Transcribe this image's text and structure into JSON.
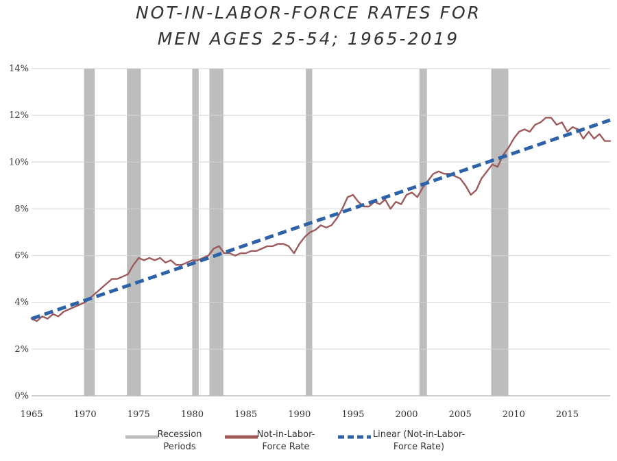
{
  "chart_data": {
    "type": "line",
    "title_line1": "NOT-IN-LABOR-FORCE RATES FOR",
    "title_line2": "MEN AGES 25-54; 1965-2019",
    "xlabel": "",
    "ylabel": "",
    "xlim": [
      1965,
      2019
    ],
    "ylim": [
      0,
      14
    ],
    "y_ticks": [
      "0%",
      "2%",
      "4%",
      "6%",
      "8%",
      "10%",
      "12%",
      "14%"
    ],
    "x_ticks": [
      "1965",
      "1970",
      "1975",
      "1980",
      "1985",
      "1990",
      "1995",
      "2000",
      "2005",
      "2010",
      "2015"
    ],
    "grid": true,
    "legend_position": "bottom",
    "recession_periods": [
      [
        1969.9,
        1970.9
      ],
      [
        1973.9,
        1975.2
      ],
      [
        1980.0,
        1980.6
      ],
      [
        1981.6,
        1982.9
      ],
      [
        1990.6,
        1991.2
      ],
      [
        2001.2,
        2001.9
      ],
      [
        2007.9,
        2009.5
      ]
    ],
    "series": [
      {
        "name": "Not-in-Labor-Force Rate",
        "color": "#9e5a5a",
        "x": [
          1965.0,
          1965.5,
          1966.0,
          1966.5,
          1967.0,
          1967.5,
          1968.0,
          1968.5,
          1969.0,
          1969.5,
          1970.0,
          1970.5,
          1971.0,
          1971.5,
          1972.0,
          1972.5,
          1973.0,
          1973.5,
          1974.0,
          1974.5,
          1975.0,
          1975.5,
          1976.0,
          1976.5,
          1977.0,
          1977.5,
          1978.0,
          1978.5,
          1979.0,
          1979.5,
          1980.0,
          1980.5,
          1981.0,
          1981.5,
          1982.0,
          1982.5,
          1983.0,
          1983.5,
          1984.0,
          1984.5,
          1985.0,
          1985.5,
          1986.0,
          1986.5,
          1987.0,
          1987.5,
          1988.0,
          1988.5,
          1989.0,
          1989.5,
          1990.0,
          1990.5,
          1991.0,
          1991.5,
          1992.0,
          1992.5,
          1993.0,
          1993.5,
          1994.0,
          1994.5,
          1995.0,
          1995.5,
          1996.0,
          1996.5,
          1997.0,
          1997.5,
          1998.0,
          1998.5,
          1999.0,
          1999.5,
          2000.0,
          2000.5,
          2001.0,
          2001.5,
          2002.0,
          2002.5,
          2003.0,
          2003.5,
          2004.0,
          2004.5,
          2005.0,
          2005.5,
          2006.0,
          2006.5,
          2007.0,
          2007.5,
          2008.0,
          2008.5,
          2009.0,
          2009.5,
          2010.0,
          2010.5,
          2011.0,
          2011.5,
          2012.0,
          2012.5,
          2013.0,
          2013.5,
          2014.0,
          2014.5,
          2015.0,
          2015.5,
          2016.0,
          2016.5,
          2017.0,
          2017.5,
          2018.0,
          2018.5,
          2019.0
        ],
        "values": [
          3.3,
          3.2,
          3.4,
          3.3,
          3.5,
          3.4,
          3.6,
          3.7,
          3.8,
          3.9,
          4.0,
          4.2,
          4.4,
          4.6,
          4.8,
          5.0,
          5.0,
          5.1,
          5.2,
          5.6,
          5.9,
          5.8,
          5.9,
          5.8,
          5.9,
          5.7,
          5.8,
          5.6,
          5.6,
          5.7,
          5.8,
          5.8,
          5.9,
          6.0,
          6.3,
          6.4,
          6.1,
          6.1,
          6.0,
          6.1,
          6.1,
          6.2,
          6.2,
          6.3,
          6.4,
          6.4,
          6.5,
          6.5,
          6.4,
          6.1,
          6.5,
          6.8,
          7.0,
          7.1,
          7.3,
          7.2,
          7.3,
          7.6,
          8.0,
          8.5,
          8.6,
          8.3,
          8.1,
          8.1,
          8.3,
          8.2,
          8.4,
          8.0,
          8.3,
          8.2,
          8.6,
          8.7,
          8.5,
          8.9,
          9.2,
          9.5,
          9.6,
          9.5,
          9.5,
          9.4,
          9.3,
          9.0,
          8.6,
          8.8,
          9.3,
          9.6,
          9.9,
          9.8,
          10.3,
          10.6,
          11.0,
          11.3,
          11.4,
          11.3,
          11.6,
          11.7,
          11.9,
          11.9,
          11.6,
          11.7,
          11.3,
          11.5,
          11.4,
          11.0,
          11.3,
          11.0,
          11.2,
          10.9,
          10.9
        ]
      },
      {
        "name": "Linear (Not-in-Labor-Force Rate)",
        "color": "#2e62a8",
        "x": [
          1965,
          2019
        ],
        "values": [
          3.3,
          11.8
        ]
      }
    ]
  },
  "legend": [
    {
      "line1": "Recession",
      "line2": "Periods",
      "color": "#bdbdbd",
      "style": "bar"
    },
    {
      "line1": "Not-in-Labor-",
      "line2": "Force Rate",
      "color": "#9e5a5a",
      "style": "line"
    },
    {
      "line1": "Linear (Not-in-Labor-",
      "line2": "Force Rate)",
      "color": "#2e62a8",
      "style": "dashed"
    }
  ]
}
